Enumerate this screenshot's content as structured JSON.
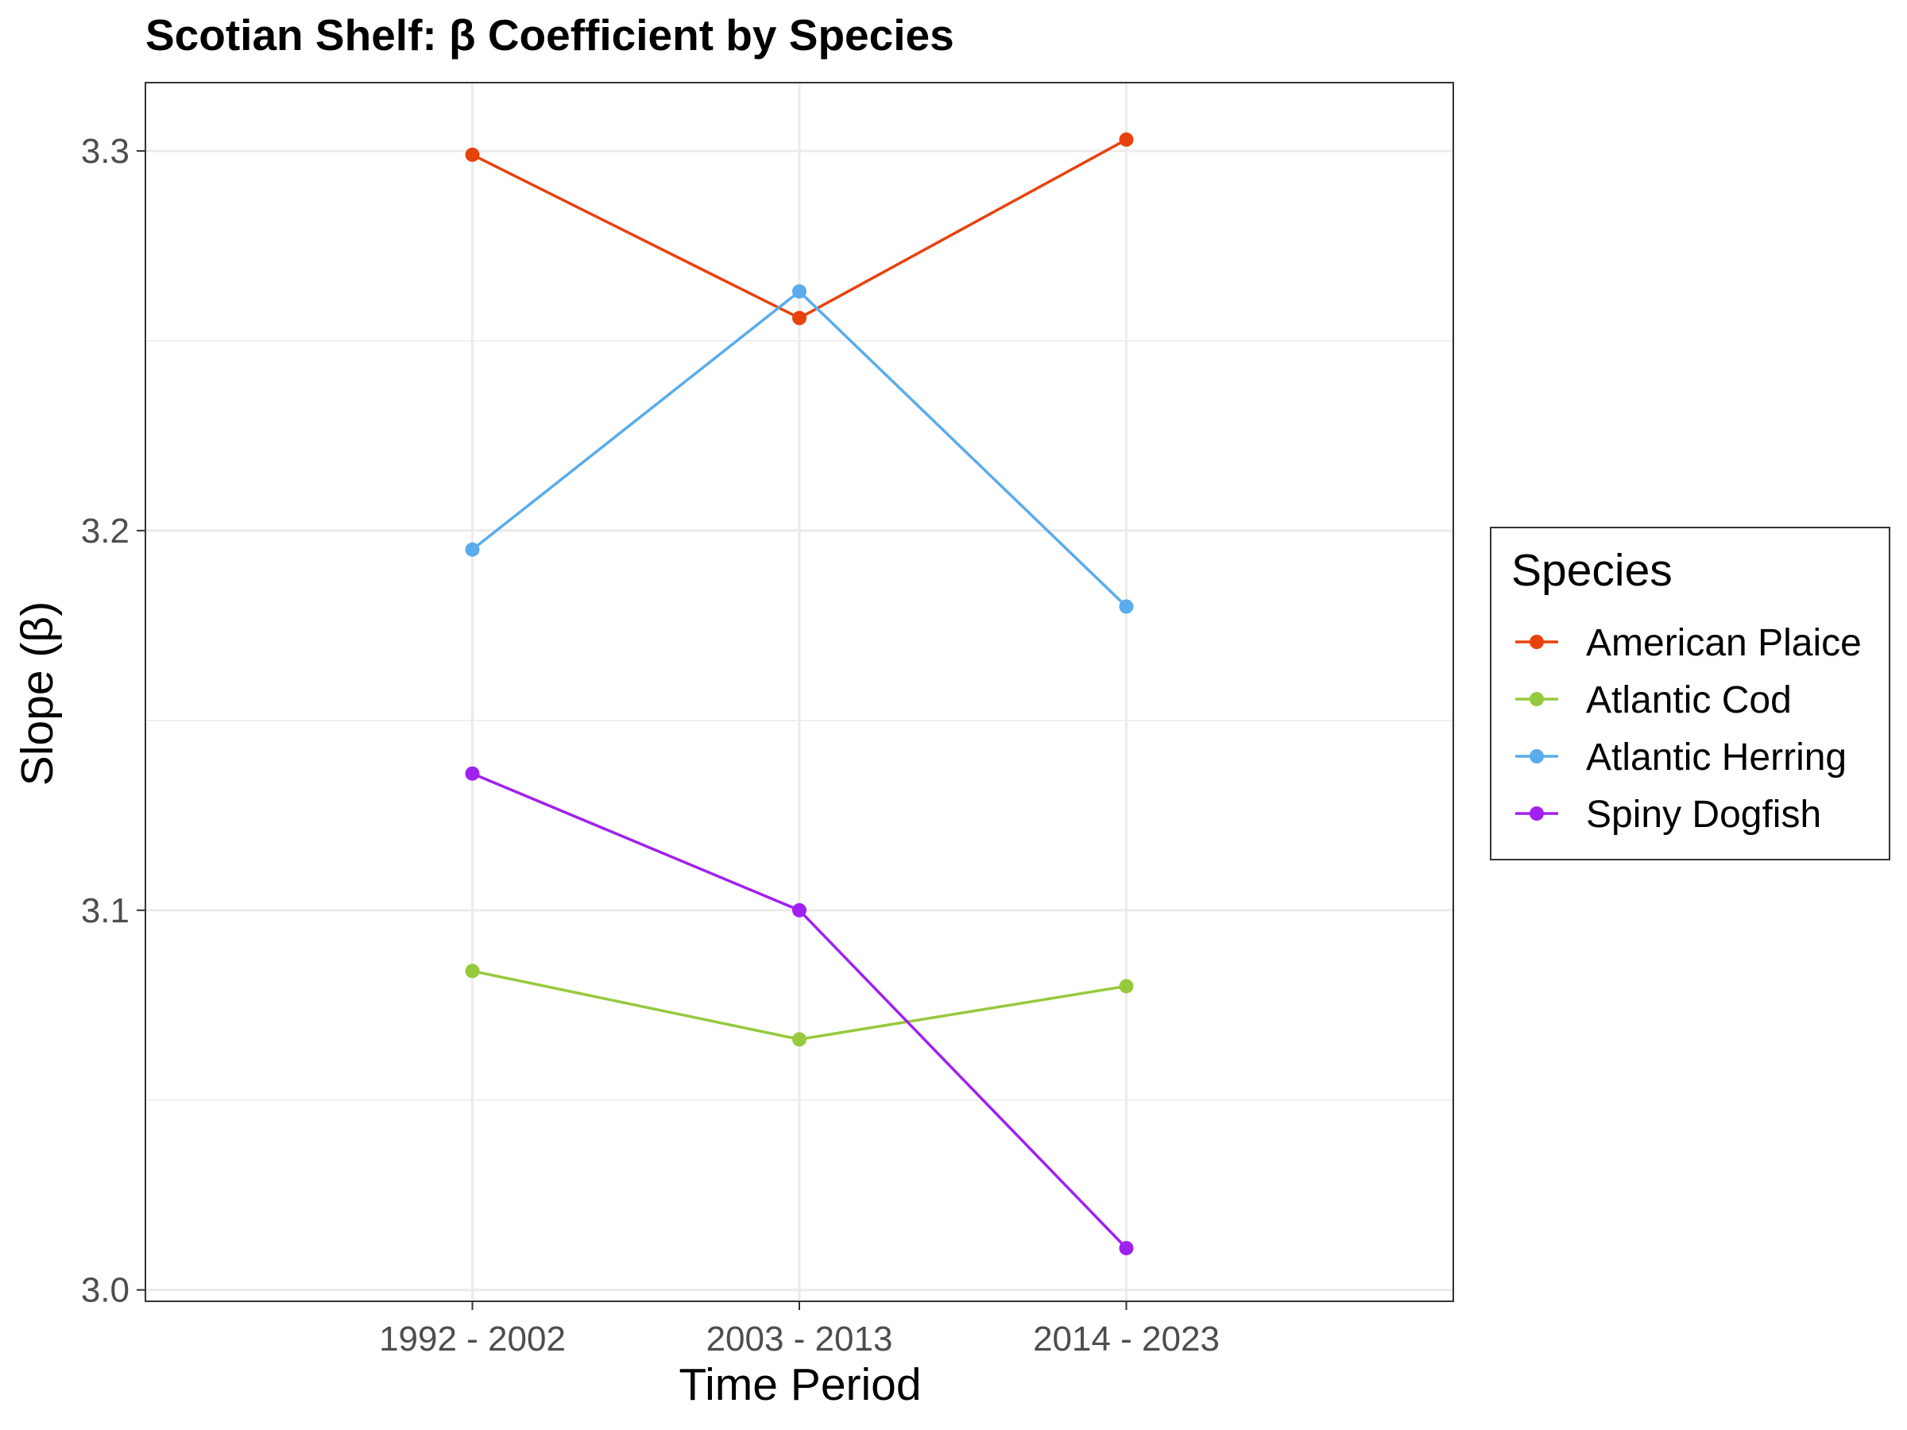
{
  "chart_data": {
    "type": "line",
    "title": "Scotian Shelf: β Coefficient by Species",
    "xlabel": "Time Period",
    "ylabel": "Slope (β)",
    "categories": [
      "1992 - 2002",
      "2003 - 2013",
      "2014 - 2023"
    ],
    "ylim": [
      2.997,
      3.318
    ],
    "yticks": [
      "3.0",
      "3.1",
      "3.2",
      "3.3"
    ],
    "ytick_values": [
      3.0,
      3.1,
      3.2,
      3.3
    ],
    "grid": true,
    "legend": {
      "title": "Species",
      "position": "right"
    },
    "series": [
      {
        "name": "American Plaice",
        "color": "#e8420c",
        "values": [
          3.299,
          3.256,
          3.303
        ]
      },
      {
        "name": "Atlantic Cod",
        "color": "#97c93d",
        "values": [
          3.084,
          3.066,
          3.08
        ]
      },
      {
        "name": "Atlantic Herring",
        "color": "#5aacec",
        "values": [
          3.195,
          3.263,
          3.18
        ]
      },
      {
        "name": "Spiny Dogfish",
        "color": "#a020f0",
        "values": [
          3.136,
          3.1,
          3.011
        ]
      }
    ]
  }
}
